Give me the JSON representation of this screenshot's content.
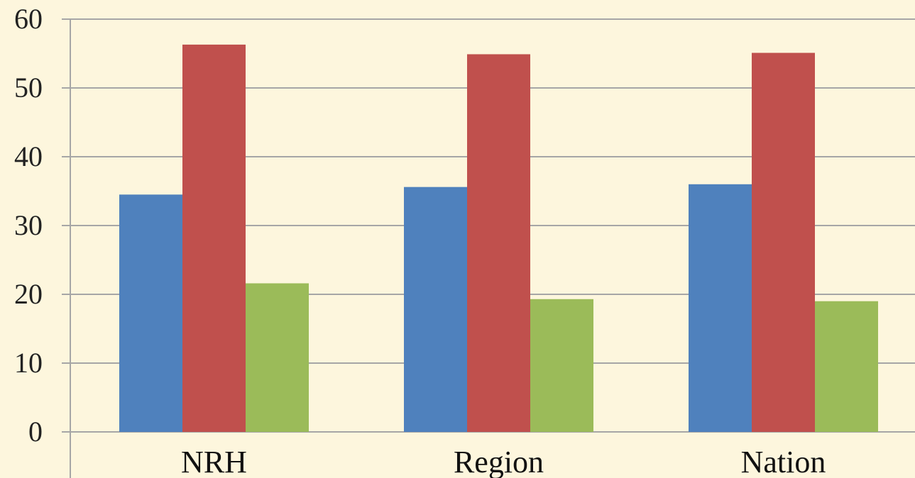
{
  "chart_data": {
    "type": "bar",
    "title": "",
    "xlabel": "",
    "ylabel": "",
    "categories": [
      "NRH",
      "Region",
      "Nation"
    ],
    "series": [
      {
        "values": [
          34.5,
          35.6,
          36.0
        ],
        "color": "#4f81bd"
      },
      {
        "values": [
          56.3,
          54.9,
          55.1
        ],
        "color": "#c0504d"
      },
      {
        "values": [
          21.6,
          19.3,
          19.0
        ],
        "color": "#9bbb59"
      }
    ],
    "ylim": [
      0,
      60
    ],
    "yticks": [
      "0",
      "10",
      "20",
      "30",
      "40",
      "50",
      "60"
    ],
    "grid": true,
    "legend": "none"
  },
  "colors": {
    "background": "#fdf6dd",
    "gridline": "#a6a6a6"
  }
}
